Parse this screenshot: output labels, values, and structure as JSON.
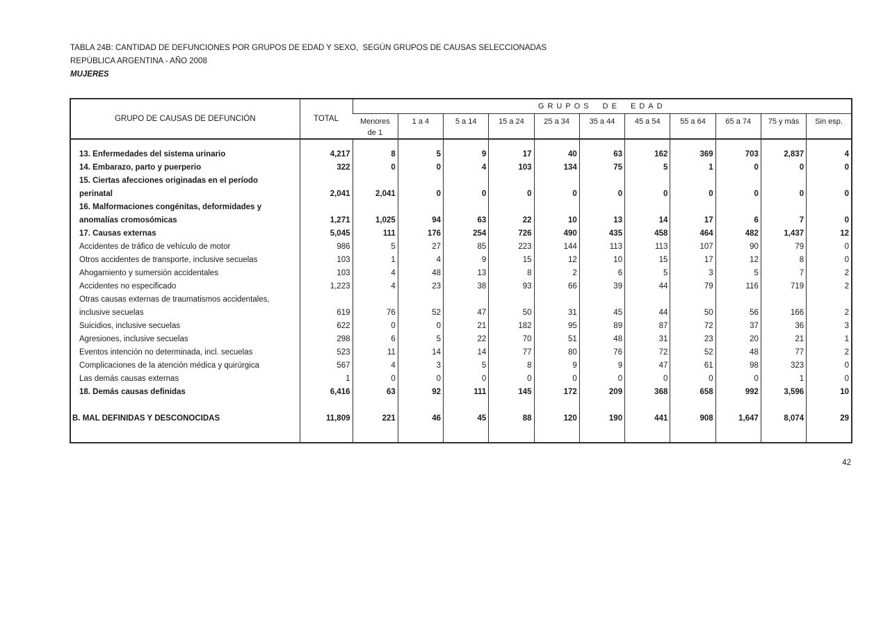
{
  "page": {
    "title_line1": "TABLA 24B: CANTIDAD DE DEFUNCIONES POR GRUPOS DE EDAD Y SEXO,  SEGÚN GRUPOS DE CAUSAS SELECCIONADAS",
    "title_line2": "REPÚBLICA ARGENTINA - AÑO 2008",
    "subtitle": "MUJERES",
    "page_number": "42"
  },
  "table": {
    "header": {
      "cause": "GRUPO DE CAUSAS DE DEFUNCIÓN",
      "total": "TOTAL",
      "age_groups_label": "GRUPOS DE EDAD",
      "age_columns": [
        [
          "Menores",
          "de 1"
        ],
        "1 a 4",
        "5 a 14",
        "15 a 24",
        "25 a 34",
        "35 a 44",
        "45 a 54",
        "55 a 64",
        "65 a 74",
        "75 y más",
        "Sin esp."
      ]
    },
    "rows": [
      {
        "spacer": true,
        "h": 13
      },
      {
        "label": "13. Enfermedades del sistema urinario",
        "bold": true,
        "values": [
          "4,217",
          "8",
          "5",
          "9",
          "17",
          "40",
          "63",
          "162",
          "369",
          "703",
          "2,837",
          "4"
        ]
      },
      {
        "label": "14. Embarazo, parto y puerperio",
        "bold": true,
        "values": [
          "322",
          "0",
          "0",
          "4",
          "103",
          "134",
          "75",
          "5",
          "1",
          "0",
          "0",
          "0"
        ]
      },
      {
        "label": [
          "15.  Ciertas afecciones originadas en el período",
          "perinatal"
        ],
        "bold": true,
        "values": [
          "2,041",
          "2,041",
          "0",
          "0",
          "0",
          "0",
          "0",
          "0",
          "0",
          "0",
          "0",
          "0"
        ]
      },
      {
        "label": [
          "16. Malformaciones congénitas, deformidades y",
          "anomalías cromosómicas"
        ],
        "bold": true,
        "values": [
          "1,271",
          "1,025",
          "94",
          "63",
          "22",
          "10",
          "13",
          "14",
          "17",
          "6",
          "7",
          "0"
        ]
      },
      {
        "label": "17. Causas externas",
        "bold": true,
        "values": [
          "5,045",
          "111",
          "176",
          "254",
          "726",
          "490",
          "435",
          "458",
          "464",
          "482",
          "1,437",
          "12"
        ]
      },
      {
        "label": "Accidentes de tráfico de vehículo de motor",
        "bold": false,
        "values": [
          "986",
          "5",
          "27",
          "85",
          "223",
          "144",
          "113",
          "113",
          "107",
          "90",
          "79",
          "0"
        ]
      },
      {
        "label": "Otros accidentes de transporte, inclusive secuelas",
        "bold": false,
        "values": [
          "103",
          "1",
          "4",
          "9",
          "15",
          "12",
          "10",
          "15",
          "17",
          "12",
          "8",
          "0"
        ]
      },
      {
        "label": "Ahogamiento y sumersión accidentales",
        "bold": false,
        "values": [
          "103",
          "4",
          "48",
          "13",
          "8",
          "2",
          "6",
          "5",
          "3",
          "5",
          "7",
          "2"
        ]
      },
      {
        "label": "Accidentes no especificado",
        "bold": false,
        "values": [
          "1,223",
          "4",
          "23",
          "38",
          "93",
          "66",
          "39",
          "44",
          "79",
          "116",
          "719",
          "2"
        ]
      },
      {
        "label": [
          "Otras causas externas de  traumatismos accidentales,",
          "inclusive secuelas"
        ],
        "bold": false,
        "values": [
          "619",
          "76",
          "52",
          "47",
          "50",
          "31",
          "45",
          "44",
          "50",
          "56",
          "166",
          "2"
        ]
      },
      {
        "label": "Suicidios, inclusive secuelas",
        "bold": false,
        "values": [
          "622",
          "0",
          "0",
          "21",
          "182",
          "95",
          "89",
          "87",
          "72",
          "37",
          "36",
          "3"
        ]
      },
      {
        "label": "Agresiones, inclusive secuelas",
        "bold": false,
        "values": [
          "298",
          "6",
          "5",
          "22",
          "70",
          "51",
          "48",
          "31",
          "23",
          "20",
          "21",
          "1"
        ]
      },
      {
        "label": "Eventos intención no determinada, incl. secuelas",
        "bold": false,
        "values": [
          "523",
          "11",
          "14",
          "14",
          "77",
          "80",
          "76",
          "72",
          "52",
          "48",
          "77",
          "2"
        ]
      },
      {
        "label": "Complicaciones de la atención médica y quirúrgica",
        "bold": false,
        "values": [
          "567",
          "4",
          "3",
          "5",
          "8",
          "9",
          "9",
          "47",
          "61",
          "98",
          "323",
          "0"
        ]
      },
      {
        "label": "Las demás causas externas",
        "bold": false,
        "values": [
          "1",
          "0",
          "0",
          "0",
          "0",
          "0",
          "0",
          "0",
          "0",
          "0",
          "1",
          "0"
        ]
      },
      {
        "label": "18. Demás causas definidas",
        "bold": true,
        "values": [
          "6,416",
          "63",
          "92",
          "111",
          "145",
          "172",
          "209",
          "368",
          "658",
          "992",
          "3,596",
          "10"
        ]
      },
      {
        "spacer": true,
        "h": 19
      },
      {
        "label": "B. MAL DEFINIDAS Y DESCONOCIDAS",
        "bold": true,
        "flush": true,
        "values": [
          "11,809",
          "221",
          "46",
          "45",
          "88",
          "120",
          "190",
          "441",
          "908",
          "1,647",
          "8,074",
          "29"
        ]
      },
      {
        "spacer": true
      }
    ]
  }
}
